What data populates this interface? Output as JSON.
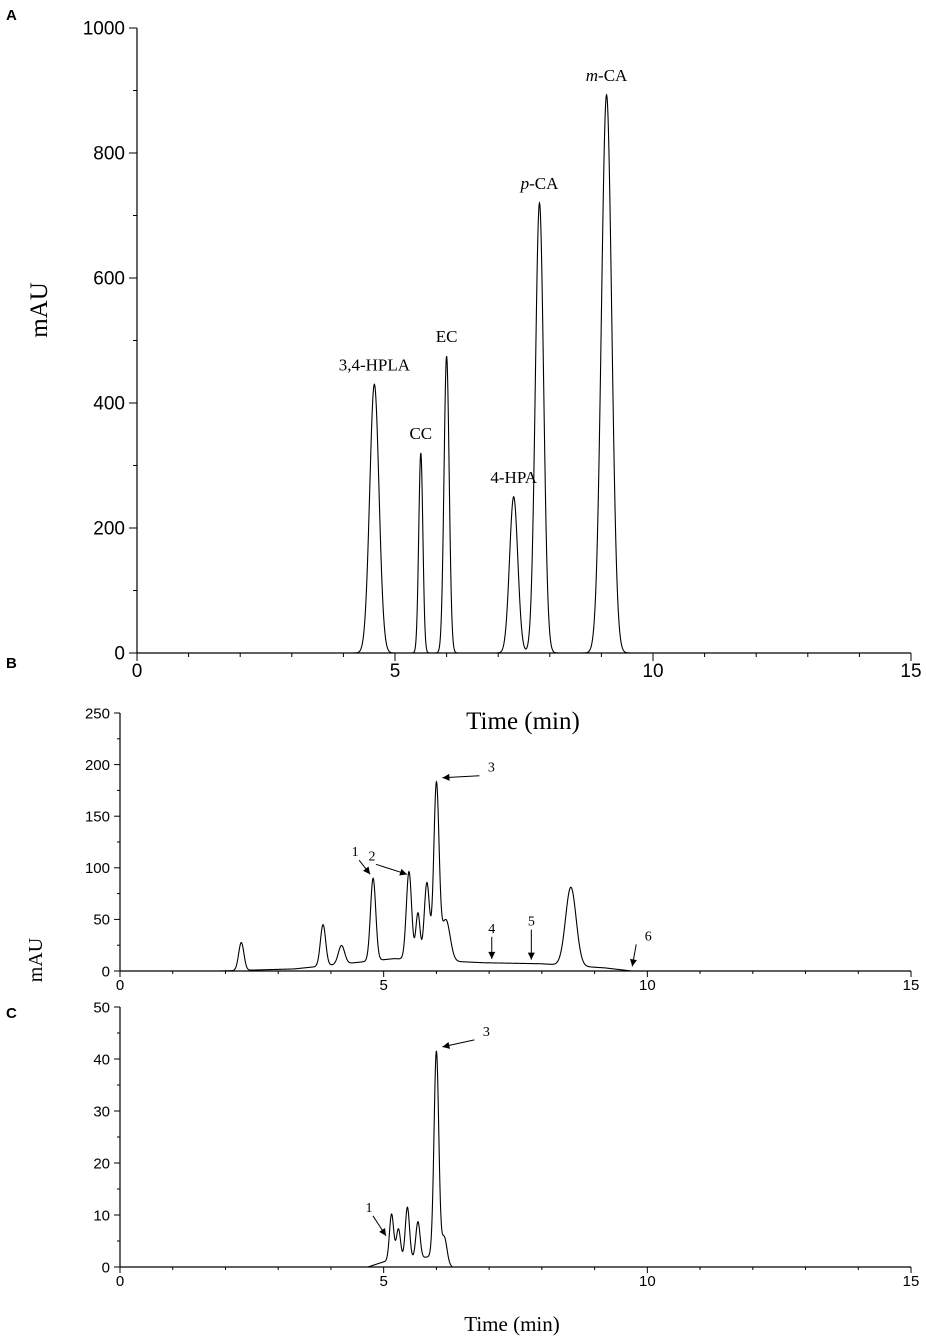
{
  "panels": [
    {
      "letter": "A"
    },
    {
      "letter": "B"
    },
    {
      "letter": "C"
    }
  ],
  "colors": {
    "trace": "#000000",
    "axis": "#000000",
    "background": "#ffffff"
  },
  "chart_data": [
    {
      "type": "line",
      "panel": "A",
      "xlabel": "Time (min)",
      "ylabel": "mAU",
      "xlim": [
        0,
        15
      ],
      "ylim": [
        0,
        1000
      ],
      "xticks": [
        0,
        5,
        10,
        15
      ],
      "yticks": [
        0,
        200,
        400,
        600,
        800,
        1000
      ],
      "grid": false,
      "peaks": [
        {
          "label": "3,4-HPLA",
          "time": 4.6,
          "height": 430,
          "width": 0.09
        },
        {
          "label": "CC",
          "time": 5.5,
          "height": 320,
          "width": 0.04
        },
        {
          "label": "EC",
          "time": 6.0,
          "height": 475,
          "width": 0.05
        },
        {
          "label": "4-HPA",
          "time": 7.3,
          "height": 250,
          "width": 0.08
        },
        {
          "label": "p-CA",
          "time": 7.8,
          "height": 720,
          "width": 0.08
        },
        {
          "label": "m-CA",
          "time": 9.1,
          "height": 893,
          "width": 0.1
        }
      ]
    },
    {
      "type": "line",
      "panel": "B",
      "xlabel": "",
      "ylabel": "mAU",
      "xlim": [
        0,
        15
      ],
      "ylim": [
        0,
        250
      ],
      "xticks": [
        0,
        5,
        10,
        15
      ],
      "yticks": [
        0,
        50,
        100,
        150,
        200,
        250
      ],
      "grid": false,
      "peaks": [
        {
          "time": 2.3,
          "height": 27,
          "width": 0.05
        },
        {
          "time": 3.85,
          "height": 40,
          "width": 0.05
        },
        {
          "time": 4.2,
          "height": 18,
          "width": 0.06
        },
        {
          "time": 4.8,
          "height": 80,
          "width": 0.05
        },
        {
          "time": 5.48,
          "height": 85,
          "width": 0.05
        },
        {
          "time": 5.65,
          "height": 45,
          "width": 0.04
        },
        {
          "time": 5.82,
          "height": 75,
          "width": 0.05
        },
        {
          "time": 6.0,
          "height": 170,
          "width": 0.05
        },
        {
          "time": 6.18,
          "height": 40,
          "width": 0.08
        },
        {
          "time": 8.55,
          "height": 76,
          "width": 0.1
        }
      ],
      "baseline": [
        {
          "time": 1.9,
          "value": 0
        },
        {
          "time": 3.3,
          "value": 2
        },
        {
          "time": 5.2,
          "value": 12
        },
        {
          "time": 6.9,
          "value": 8
        },
        {
          "time": 8.0,
          "value": 7
        },
        {
          "time": 9.2,
          "value": 3
        },
        {
          "time": 9.7,
          "value": 0
        }
      ],
      "annotations": [
        {
          "label": "1",
          "time": 4.8
        },
        {
          "label": "2",
          "time": 5.5
        },
        {
          "label": "3",
          "time": 6.0
        },
        {
          "label": "4",
          "time": 7.05
        },
        {
          "label": "5",
          "time": 7.8
        },
        {
          "label": "6",
          "time": 9.6
        }
      ]
    },
    {
      "type": "line",
      "panel": "C",
      "xlabel": "Time (min)",
      "ylabel": "",
      "xlim": [
        0,
        15
      ],
      "ylim": [
        0,
        50
      ],
      "xticks": [
        0,
        5,
        10,
        15
      ],
      "yticks": [
        0,
        10,
        20,
        30,
        40,
        50
      ],
      "grid": false,
      "peaks": [
        {
          "time": 5.15,
          "height": 9,
          "width": 0.04
        },
        {
          "time": 5.28,
          "height": 6,
          "width": 0.04
        },
        {
          "time": 5.45,
          "height": 10,
          "width": 0.04
        },
        {
          "time": 5.65,
          "height": 7,
          "width": 0.04
        },
        {
          "time": 6.0,
          "height": 40,
          "width": 0.045
        },
        {
          "time": 6.15,
          "height": 5,
          "width": 0.05
        }
      ],
      "baseline": [
        {
          "time": 4.7,
          "value": 0
        },
        {
          "time": 5.0,
          "value": 1
        },
        {
          "time": 5.9,
          "value": 2
        },
        {
          "time": 6.3,
          "value": 0
        }
      ],
      "annotations": [
        {
          "label": "1",
          "time": 5.1
        },
        {
          "label": "3",
          "time": 6.0
        }
      ]
    }
  ]
}
